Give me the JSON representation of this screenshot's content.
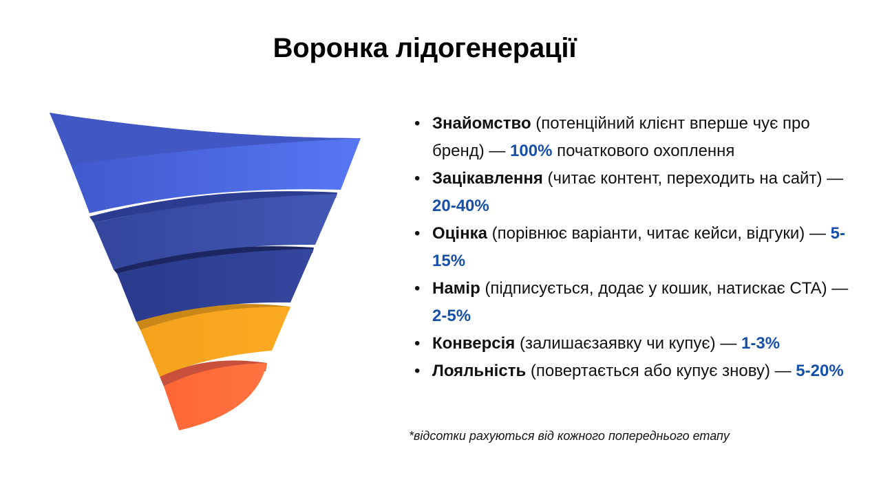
{
  "title": "Воронка лідогенерації",
  "colors": {
    "percent": "#1750a8",
    "stage_1": "#4f6ef0",
    "stage_2": "#3b4fa8",
    "stage_3": "#2f3f96",
    "stage_4": "#f8a61e",
    "stage_5": "#ff6a3c"
  },
  "stages": [
    {
      "name": "Знайомство",
      "description": " (потенційний клієнт вперше чує про бренд) — ",
      "percent": "100%",
      "suffix": " початкового охоплення"
    },
    {
      "name": "Зацікавлення",
      "description": " (читає контент, переходить на сайт) — ",
      "percent": "20-40%",
      "suffix": ""
    },
    {
      "name": "Оцінка",
      "description": " (порівнює варіанти, читає кейси, відгуки) — ",
      "percent": "5-15%",
      "suffix": ""
    },
    {
      "name": "Намір",
      "description": " (підписується, додає у кошик, натискає CTA) — ",
      "percent": "2-5%",
      "suffix": ""
    },
    {
      "name": "Конверсія",
      "description": " (залишаєзаявку чи купує) — ",
      "percent": "1-3%",
      "suffix": ""
    },
    {
      "name": "Лояльність",
      "description": " (повертається або купує знову) — ",
      "percent": "5-20%",
      "suffix": ""
    }
  ],
  "footnote": "*відсотки рахуються від кожного попереднього етапу"
}
